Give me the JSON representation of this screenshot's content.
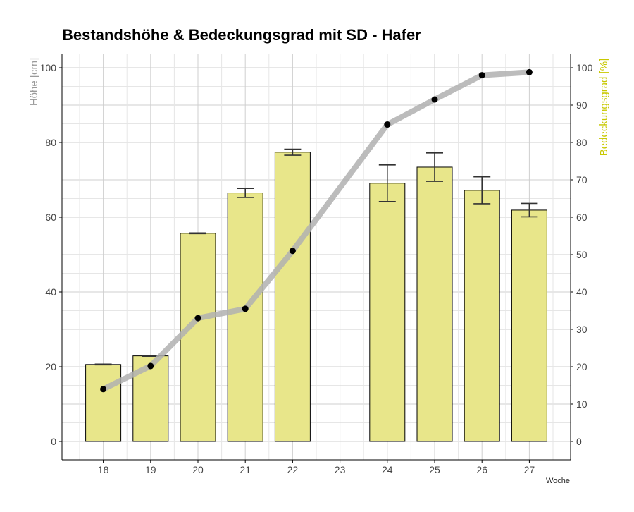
{
  "chart_data": {
    "type": "bar",
    "title": "Bestandshöhe & Bedeckungsgrad mit SD - Hafer",
    "xlabel": "Woche",
    "ylabel": "Höhe [cm]",
    "y2label": "Bedeckungsgrad [%]",
    "categories": [
      "18",
      "19",
      "20",
      "21",
      "22",
      "23",
      "24",
      "25",
      "26",
      "27"
    ],
    "ylim": [
      0,
      100
    ],
    "y2lim": [
      0,
      100
    ],
    "yticks": [
      0,
      20,
      40,
      60,
      80,
      100
    ],
    "y2ticks": [
      0,
      10,
      20,
      30,
      40,
      50,
      60,
      70,
      80,
      90,
      100
    ],
    "grid": true,
    "series": [
      {
        "name": "Höhe [cm]",
        "type": "bar",
        "axis": "left",
        "values": [
          20.6,
          22.9,
          55.7,
          66.5,
          77.4,
          null,
          69.1,
          73.4,
          67.2,
          61.9
        ],
        "sd": [
          0.1,
          0.1,
          0.1,
          1.2,
          0.8,
          null,
          4.9,
          3.8,
          3.6,
          1.8
        ]
      },
      {
        "name": "Bedeckungsgrad [%]",
        "type": "line",
        "axis": "right",
        "values": [
          14.0,
          20.2,
          33.0,
          35.5,
          51.0,
          null,
          84.8,
          91.5,
          98.0,
          98.8
        ]
      }
    ],
    "colors": {
      "bar_fill": "#e8e68a",
      "bar_stroke": "#000000",
      "errorbar": "#333333",
      "line": "#b0b0b0",
      "point": "#000000",
      "y2label": "#c8c800"
    }
  }
}
